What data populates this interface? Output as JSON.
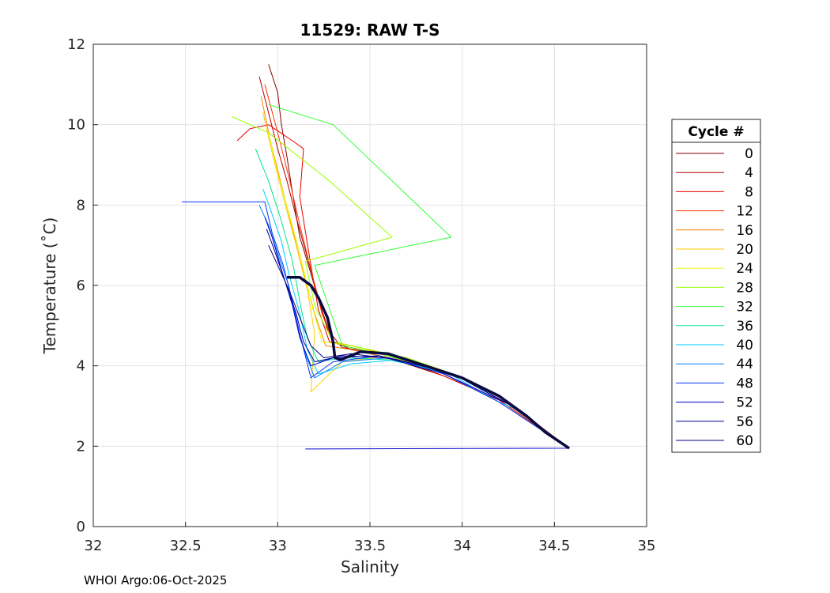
{
  "chart_data": {
    "type": "line",
    "title": "11529: RAW T-S",
    "xlabel": "Salinity",
    "ylabel": "Temperature (˚C)",
    "xlim": [
      32,
      35
    ],
    "ylim": [
      0,
      12
    ],
    "xticks": [
      "32",
      "32.5",
      "33",
      "33.5",
      "34",
      "34.5",
      "35"
    ],
    "yticks": [
      "0",
      "2",
      "4",
      "6",
      "8",
      "10",
      "12"
    ],
    "grid": true,
    "legend": {
      "title": "Cycle #",
      "placement": "right",
      "entries": [
        {
          "label": "0",
          "color": "#800000"
        },
        {
          "label": "4",
          "color": "#b30000"
        },
        {
          "label": "8",
          "color": "#e60000"
        },
        {
          "label": "12",
          "color": "#ff3300"
        },
        {
          "label": "16",
          "color": "#ff8000"
        },
        {
          "label": "20",
          "color": "#ffcc00"
        },
        {
          "label": "24",
          "color": "#e6ff00"
        },
        {
          "label": "28",
          "color": "#99ff00"
        },
        {
          "label": "32",
          "color": "#33ff33"
        },
        {
          "label": "36",
          "color": "#00e68c"
        },
        {
          "label": "40",
          "color": "#00ccff"
        },
        {
          "label": "44",
          "color": "#0080ff"
        },
        {
          "label": "48",
          "color": "#0033ff"
        },
        {
          "label": "52",
          "color": "#0000cc"
        },
        {
          "label": "56",
          "color": "#000099"
        },
        {
          "label": "60",
          "color": "#000080"
        }
      ]
    },
    "series": [
      {
        "name": "cycle-0",
        "color": "#800000",
        "x": [
          32.95,
          33.0,
          33.02,
          33.05,
          33.08,
          33.12,
          33.18,
          33.23,
          33.3,
          33.4,
          33.6,
          33.9,
          34.2,
          34.58
        ],
        "y": [
          11.5,
          10.8,
          10.0,
          9.2,
          8.3,
          7.2,
          6.3,
          5.5,
          4.6,
          4.4,
          4.2,
          3.75,
          3.15,
          1.95
        ]
      },
      {
        "name": "cycle-4",
        "color": "#b30000",
        "x": [
          32.9,
          32.95,
          33.0,
          33.05,
          33.1,
          33.16,
          33.22,
          33.27,
          33.35,
          33.5,
          33.7,
          33.95,
          34.25,
          34.58
        ],
        "y": [
          11.2,
          10.3,
          9.4,
          8.6,
          7.7,
          6.7,
          5.7,
          4.9,
          4.45,
          4.35,
          4.15,
          3.8,
          3.1,
          1.95
        ]
      },
      {
        "name": "cycle-8",
        "color": "#e60000",
        "x": [
          32.78,
          32.85,
          32.95,
          33.08,
          33.14,
          33.12,
          33.18,
          33.22,
          33.28,
          33.4,
          33.6,
          33.9,
          34.2,
          34.58
        ],
        "y": [
          9.6,
          9.9,
          10.0,
          9.6,
          9.4,
          8.2,
          6.5,
          5.4,
          4.6,
          4.45,
          4.25,
          3.75,
          3.15,
          1.95
        ]
      },
      {
        "name": "cycle-12",
        "color": "#ff3300",
        "x": [
          32.93,
          33.0,
          33.06,
          33.12,
          33.18,
          33.24,
          33.3,
          33.45,
          33.65,
          33.95,
          34.25,
          34.58
        ],
        "y": [
          11.0,
          9.8,
          8.7,
          7.5,
          6.4,
          5.3,
          4.6,
          4.45,
          4.2,
          3.8,
          3.05,
          1.95
        ]
      },
      {
        "name": "cycle-16",
        "color": "#ff8000",
        "x": [
          32.91,
          32.96,
          33.02,
          33.08,
          33.14,
          33.2,
          33.26,
          33.4,
          33.6,
          33.95,
          34.25,
          34.58
        ],
        "y": [
          10.7,
          9.6,
          8.5,
          7.4,
          6.3,
          5.3,
          4.5,
          4.4,
          4.2,
          3.8,
          3.05,
          1.95
        ]
      },
      {
        "name": "cycle-20",
        "color": "#ffcc00",
        "x": [
          32.92,
          32.97,
          33.03,
          33.1,
          33.16,
          33.2,
          33.18,
          33.35,
          33.6,
          33.9,
          34.2,
          34.58
        ],
        "y": [
          10.3,
          9.3,
          8.2,
          7.0,
          5.9,
          4.8,
          3.35,
          4.1,
          4.25,
          3.8,
          3.1,
          1.95
        ]
      },
      {
        "name": "cycle-24",
        "color": "#e6ff00",
        "x": [
          32.95,
          33.0,
          33.06,
          33.12,
          33.18,
          33.24,
          33.4,
          33.6,
          33.95,
          34.25,
          34.58
        ],
        "y": [
          9.8,
          8.8,
          7.8,
          6.8,
          5.6,
          4.6,
          4.5,
          4.25,
          3.8,
          3.05,
          1.95
        ]
      },
      {
        "name": "cycle-28",
        "color": "#99ff00",
        "x": [
          32.75,
          32.95,
          33.28,
          33.62,
          33.15,
          33.2,
          33.3,
          33.5,
          33.7,
          33.95,
          34.25,
          34.58
        ],
        "y": [
          10.2,
          9.8,
          8.6,
          7.2,
          6.6,
          5.5,
          4.6,
          4.4,
          4.2,
          3.8,
          3.05,
          1.95
        ]
      },
      {
        "name": "cycle-32",
        "color": "#33ff33",
        "x": [
          32.95,
          33.3,
          33.94,
          33.2,
          33.35,
          33.6,
          33.95,
          34.25,
          34.58
        ],
        "y": [
          10.5,
          10.0,
          7.2,
          6.5,
          4.5,
          4.25,
          3.8,
          3.05,
          1.95
        ]
      },
      {
        "name": "cycle-36",
        "color": "#00e68c",
        "x": [
          32.88,
          32.95,
          33.02,
          33.08,
          33.12,
          33.16,
          33.22,
          33.35,
          33.6,
          33.95,
          34.25,
          34.58
        ],
        "y": [
          9.4,
          8.6,
          7.6,
          6.6,
          5.6,
          4.7,
          4.1,
          4.2,
          4.15,
          3.8,
          3.05,
          1.95
        ]
      },
      {
        "name": "cycle-40",
        "color": "#00ccff",
        "x": [
          32.92,
          32.96,
          33.02,
          33.06,
          33.12,
          33.16,
          33.22,
          33.4,
          33.65,
          33.95,
          34.2,
          34.3,
          34.58
        ],
        "y": [
          8.4,
          7.9,
          7.1,
          6.3,
          5.3,
          4.4,
          3.8,
          4.05,
          4.15,
          3.75,
          3.1,
          2.9,
          1.95
        ]
      },
      {
        "name": "cycle-44",
        "color": "#0080ff",
        "x": [
          32.9,
          32.95,
          33.0,
          33.06,
          33.1,
          33.15,
          33.2,
          33.35,
          33.6,
          33.95,
          34.25,
          34.58
        ],
        "y": [
          8.0,
          7.5,
          6.8,
          6.0,
          5.1,
          4.3,
          3.7,
          4.1,
          4.2,
          3.8,
          3.05,
          1.95
        ]
      },
      {
        "name": "cycle-48",
        "color": "#0033ff",
        "x": [
          32.48,
          32.93,
          32.97,
          33.03,
          33.08,
          33.13,
          33.18,
          33.3,
          33.55,
          33.9,
          34.2,
          34.58
        ],
        "y": [
          8.08,
          8.08,
          7.3,
          6.5,
          5.6,
          4.6,
          3.7,
          4.1,
          4.25,
          3.8,
          3.1,
          1.95
        ]
      },
      {
        "name": "cycle-52",
        "color": "#0000cc",
        "x": [
          32.93,
          32.97,
          33.02,
          33.08,
          33.12,
          33.18,
          33.3,
          33.55,
          33.9,
          34.25,
          34.58,
          33.15
        ],
        "y": [
          7.7,
          7.2,
          6.4,
          5.5,
          4.7,
          4.0,
          4.2,
          4.25,
          3.8,
          3.05,
          1.95,
          1.93
        ]
      },
      {
        "name": "cycle-56",
        "color": "#000099",
        "x": [
          32.94,
          32.98,
          33.04,
          33.1,
          33.14,
          33.2,
          33.35,
          33.6,
          33.95,
          34.25,
          34.58
        ],
        "y": [
          7.4,
          6.9,
          6.1,
          5.3,
          4.6,
          4.1,
          4.25,
          4.2,
          3.8,
          3.05,
          1.95
        ]
      },
      {
        "name": "cycle-60",
        "color": "#000080",
        "x": [
          32.95,
          33.0,
          33.06,
          33.12,
          33.18,
          33.25,
          33.4,
          33.65,
          33.95,
          34.25,
          34.58
        ],
        "y": [
          7.0,
          6.5,
          5.9,
          5.2,
          4.5,
          4.2,
          4.3,
          4.15,
          3.8,
          3.05,
          1.95
        ]
      },
      {
        "name": "mean-profile",
        "color": "#0a0a40",
        "x": [
          33.05,
          33.12,
          33.18,
          33.22,
          33.27,
          33.3,
          33.31,
          33.34,
          33.45,
          33.6,
          33.8,
          34.0,
          34.2,
          34.35,
          34.45,
          34.58
        ],
        "y": [
          6.2,
          6.2,
          6.0,
          5.7,
          5.2,
          4.6,
          4.2,
          4.15,
          4.35,
          4.3,
          4.0,
          3.7,
          3.25,
          2.75,
          2.35,
          1.95
        ]
      }
    ]
  },
  "footer": "WHOI Argo:06-Oct-2025"
}
